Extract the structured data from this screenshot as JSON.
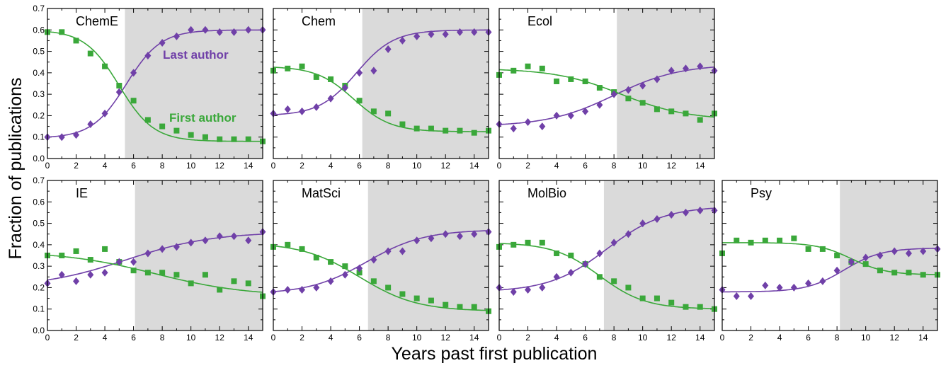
{
  "chart_data": {
    "type": "scatter",
    "xlabel": "Years past first publication",
    "ylabel": "Fraction of publications",
    "xlim": [
      0,
      15
    ],
    "ylim": [
      0,
      0.7
    ],
    "x_ticks": [
      0,
      2,
      4,
      6,
      8,
      10,
      12,
      14
    ],
    "y_ticks": [
      0,
      0.1,
      0.2,
      0.3,
      0.4,
      0.5,
      0.6,
      0.7
    ],
    "y_tick_labels": [
      "0.0",
      "0.1",
      "0.2",
      "0.3",
      "0.4",
      "0.5",
      "0.6",
      "0.7"
    ],
    "colors": {
      "last_author": "#7040a8",
      "first_author": "#3aa83a",
      "shade": "#dadada"
    },
    "annotations": {
      "last_author": "Last author",
      "first_author": "First author"
    },
    "x": [
      0,
      1,
      2,
      3,
      4,
      5,
      6,
      7,
      8,
      9,
      10,
      11,
      12,
      13,
      14,
      15
    ],
    "panels": [
      {
        "label": "ChemE",
        "shade_start": 5.4,
        "last": [
          0.1,
          0.1,
          0.11,
          0.16,
          0.21,
          0.31,
          0.4,
          0.48,
          0.54,
          0.57,
          0.6,
          0.6,
          0.59,
          0.59,
          0.6,
          0.6
        ],
        "first": [
          0.59,
          0.59,
          0.55,
          0.49,
          0.43,
          0.34,
          0.27,
          0.18,
          0.15,
          0.13,
          0.11,
          0.1,
          0.09,
          0.09,
          0.09,
          0.08
        ],
        "last_fit": {
          "lo": 0.095,
          "hi": 0.6,
          "mid": 5.5,
          "s": 1.2
        },
        "first_fit": {
          "lo": 0.08,
          "hi": 0.6,
          "mid": 5.0,
          "s": 1.2
        }
      },
      {
        "label": "Chem",
        "shade_start": 6.2,
        "last": [
          0.21,
          0.23,
          0.22,
          0.24,
          0.28,
          0.33,
          0.4,
          0.41,
          0.51,
          0.55,
          0.57,
          0.58,
          0.58,
          0.59,
          0.59,
          0.59
        ],
        "first": [
          0.41,
          0.42,
          0.43,
          0.38,
          0.37,
          0.34,
          0.27,
          0.22,
          0.21,
          0.16,
          0.14,
          0.14,
          0.13,
          0.13,
          0.12,
          0.13
        ],
        "last_fit": {
          "lo": 0.2,
          "hi": 0.6,
          "mid": 5.8,
          "s": 1.3
        },
        "first_fit": {
          "lo": 0.125,
          "hi": 0.43,
          "mid": 5.6,
          "s": 1.3
        }
      },
      {
        "label": "Ecol",
        "shade_start": 8.2,
        "last": [
          0.16,
          0.14,
          0.17,
          0.15,
          0.2,
          0.2,
          0.22,
          0.25,
          0.3,
          0.32,
          0.34,
          0.37,
          0.41,
          0.42,
          0.43,
          0.41
        ],
        "first": [
          0.39,
          0.41,
          0.43,
          0.42,
          0.36,
          0.37,
          0.36,
          0.33,
          0.31,
          0.28,
          0.26,
          0.23,
          0.22,
          0.21,
          0.18,
          0.21
        ],
        "last_fit": {
          "lo": 0.15,
          "hi": 0.44,
          "mid": 8.0,
          "s": 2.3
        },
        "first_fit": {
          "lo": 0.18,
          "hi": 0.42,
          "mid": 8.5,
          "s": 2.3
        }
      },
      {
        "label": "IE",
        "shade_start": 6.1,
        "last": [
          0.22,
          0.26,
          0.23,
          0.26,
          0.27,
          0.32,
          0.32,
          0.36,
          0.38,
          0.39,
          0.41,
          0.42,
          0.44,
          0.44,
          0.42,
          0.46
        ],
        "first": [
          0.35,
          0.35,
          0.37,
          0.33,
          0.38,
          0.32,
          0.28,
          0.27,
          0.27,
          0.26,
          0.22,
          0.26,
          0.19,
          0.23,
          0.22,
          0.16
        ],
        "last_fit": {
          "lo": 0.2,
          "hi": 0.46,
          "mid": 5.5,
          "s": 3.0
        },
        "first_fit": {
          "lo": 0.16,
          "hi": 0.37,
          "mid": 7.5,
          "s": 3.2
        }
      },
      {
        "label": "MatSci",
        "shade_start": 6.6,
        "last": [
          0.18,
          0.19,
          0.19,
          0.2,
          0.23,
          0.26,
          0.29,
          0.33,
          0.37,
          0.37,
          0.42,
          0.43,
          0.45,
          0.44,
          0.45,
          0.46
        ],
        "first": [
          0.39,
          0.4,
          0.38,
          0.34,
          0.32,
          0.3,
          0.27,
          0.23,
          0.2,
          0.17,
          0.15,
          0.14,
          0.12,
          0.11,
          0.11,
          0.09
        ],
        "last_fit": {
          "lo": 0.17,
          "hi": 0.47,
          "mid": 6.5,
          "s": 2.0
        },
        "first_fit": {
          "lo": 0.09,
          "hi": 0.41,
          "mid": 6.0,
          "s": 2.0
        }
      },
      {
        "label": "MolBio",
        "shade_start": 7.3,
        "last": [
          0.2,
          0.18,
          0.19,
          0.2,
          0.25,
          0.27,
          0.31,
          0.36,
          0.41,
          0.45,
          0.5,
          0.52,
          0.54,
          0.55,
          0.56,
          0.56
        ],
        "first": [
          0.39,
          0.4,
          0.41,
          0.41,
          0.36,
          0.35,
          0.31,
          0.25,
          0.23,
          0.2,
          0.15,
          0.15,
          0.13,
          0.11,
          0.11,
          0.1
        ],
        "last_fit": {
          "lo": 0.18,
          "hi": 0.58,
          "mid": 7.5,
          "s": 2.0
        },
        "first_fit": {
          "lo": 0.1,
          "hi": 0.41,
          "mid": 7.0,
          "s": 1.6
        }
      },
      {
        "label": "Psy",
        "shade_start": 8.2,
        "last": [
          0.19,
          0.16,
          0.16,
          0.21,
          0.2,
          0.2,
          0.22,
          0.23,
          0.28,
          0.32,
          0.34,
          0.35,
          0.37,
          0.36,
          0.37,
          0.38
        ],
        "first": [
          0.36,
          0.42,
          0.41,
          0.42,
          0.42,
          0.43,
          0.38,
          0.38,
          0.35,
          0.32,
          0.31,
          0.28,
          0.27,
          0.27,
          0.26,
          0.26
        ],
        "last_fit": {
          "lo": 0.18,
          "hi": 0.385,
          "mid": 8.5,
          "s": 1.3
        },
        "first_fit": {
          "lo": 0.26,
          "hi": 0.41,
          "mid": 9.0,
          "s": 1.2
        }
      }
    ]
  }
}
